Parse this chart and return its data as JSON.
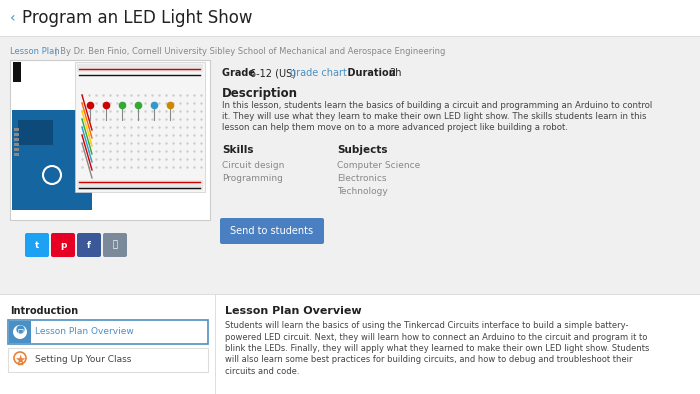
{
  "bg_color": "#f0f0f0",
  "white": "#ffffff",
  "title": "Program an LED Light Show",
  "back_arrow": "‹",
  "link_color": "#4a90c4",
  "gray_text": "#888888",
  "dark_text": "#444444",
  "black_text": "#222222",
  "lesson_plan_link": "Lesson Plan",
  "author_text": " | By Dr. Ben Finio, Cornell University Sibley School of Mechanical and Aerospace Engineering",
  "grade_label": "Grade ",
  "grade_value": "6-12 (US) ",
  "grade_chart_link": "grade chart",
  "duration_label": "    Duration ",
  "duration_value": "2h",
  "description_title": "Description",
  "description_lines": [
    "In this lesson, students learn the basics of building a circuit and programming an Arduino to control",
    "it. They will use what they learn to make their own LED light show. The skills students learn in this",
    "lesson can help them move on to a more advanced project like building a robot."
  ],
  "skills_title": "Skills",
  "skills_items": [
    "Circuit design",
    "Programming"
  ],
  "subjects_title": "Subjects",
  "subjects_items": [
    "Computer Science",
    "Electronics",
    "Technology"
  ],
  "button_text": "Send to students",
  "button_bg": "#4a7fc1",
  "button_text_color": "#ffffff",
  "intro_title": "Introduction",
  "lesson_overview_title": "Lesson Plan Overview",
  "overview_lines": [
    "Students will learn the basics of using the Tinkercad Circuits interface to build a simple battery-",
    "powered LED circuit. Next, they will learn how to connect an Arduino to the circuit and program it to",
    "blink the LEDs. Finally, they will apply what they learned to make their own LED light show. Students",
    "will also learn some best practices for building circuits, and how to debug and troubleshoot their",
    "circuits and code."
  ],
  "sidebar_item1": "Lesson Plan Overview",
  "sidebar_item2": "Setting Up Your Class",
  "sidebar_link_color": "#4a90c4",
  "sidebar_icon1_bg": "#4a90c4",
  "sidebar_icon2_color": "#e8823a",
  "divider_color": "#dddddd",
  "icon_twitter_bg": "#1da1f2",
  "icon_pinterest_bg": "#e60023",
  "icon_facebook_bg": "#3b5998",
  "icon_link_bg": "#7a8a9a"
}
